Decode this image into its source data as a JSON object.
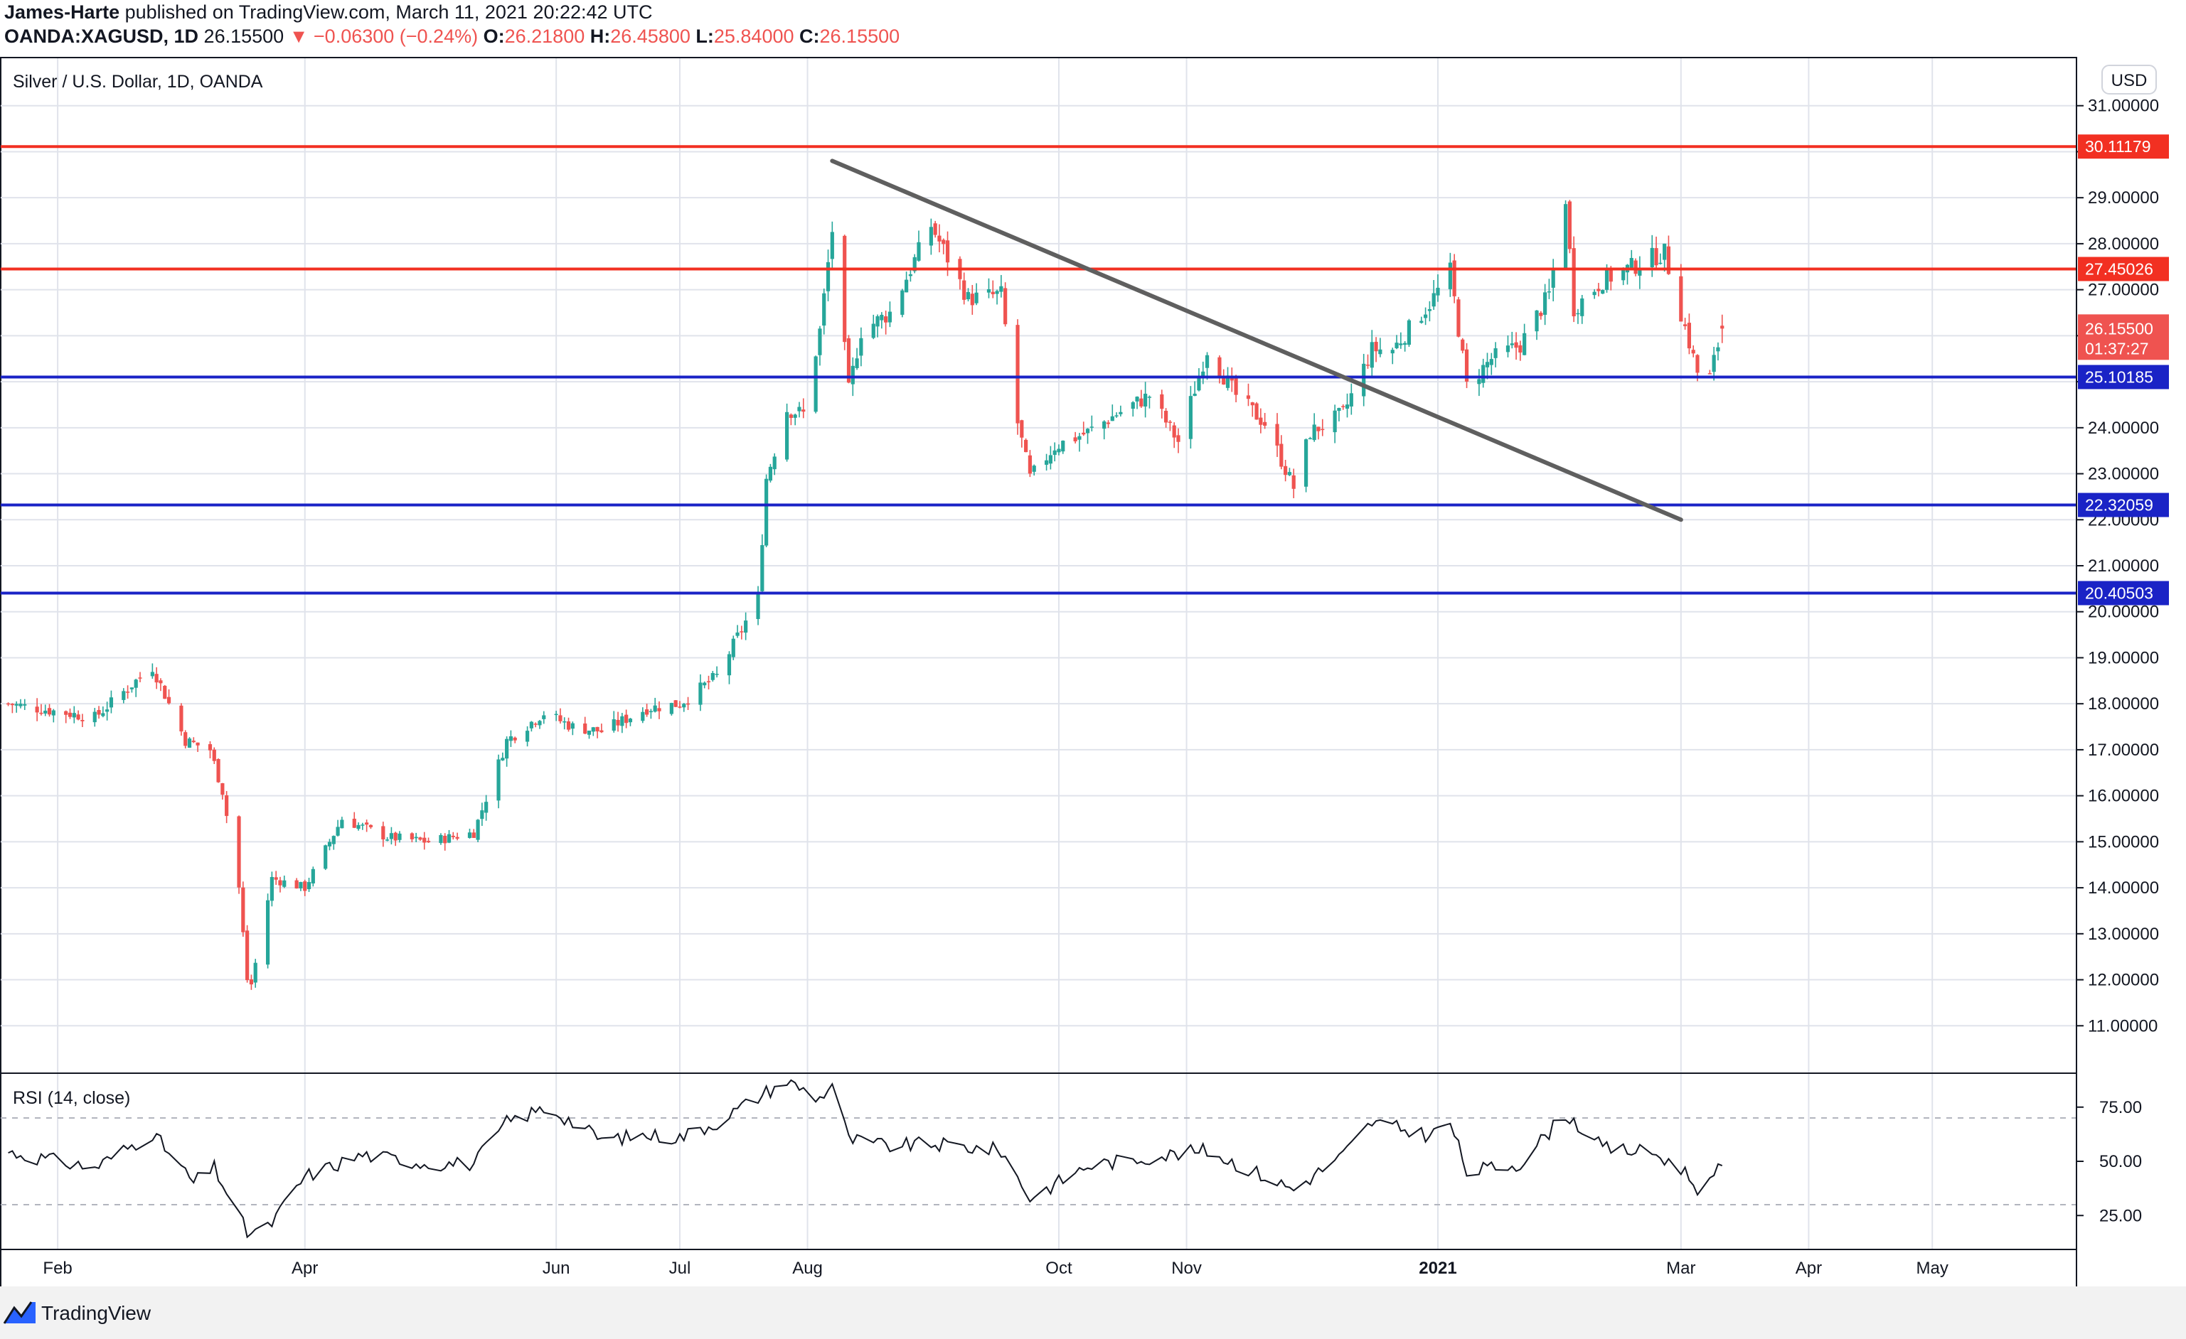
{
  "header": {
    "author": "James-Harte",
    "published_text": " published on TradingView.com, March 11, 2021 20:22:42 UTC",
    "symbol": "OANDA:XAGUSD, 1D",
    "last": "26.15500",
    "change": "▼ −0.06300 (−0.24%)",
    "open_label": "O:",
    "open": "26.21800",
    "high_label": "H:",
    "high": "26.45800",
    "low_label": "L:",
    "low": "25.84000",
    "close_label": "C:",
    "close": "26.15500"
  },
  "colors": {
    "up": "#26a69a",
    "down": "#ef5350",
    "resistance": "#f23022",
    "support": "#1a23c6",
    "trendline": "#5f5f5f",
    "rsi": "#131722",
    "grid": "#e0e3eb"
  },
  "footer": {
    "brand": "TradingView",
    "logo_icon": "tradingview-logo-icon"
  },
  "chart_data": [
    {
      "type": "candlestick",
      "title": "Silver / U.S. Dollar, 1D, OANDA",
      "currency": "USD",
      "ylim": [
        10,
        32
      ],
      "y_ticks": [
        "11.00000",
        "12.00000",
        "13.00000",
        "14.00000",
        "15.00000",
        "16.00000",
        "17.00000",
        "18.00000",
        "19.00000",
        "20.00000",
        "21.00000",
        "22.00000",
        "23.00000",
        "24.00000",
        "25.00000",
        "26.00000",
        "27.00000",
        "28.00000",
        "29.00000",
        "30.00000",
        "31.00000"
      ],
      "y_tick_values": [
        11,
        12,
        13,
        14,
        15,
        16,
        17,
        18,
        19,
        20,
        21,
        22,
        23,
        24,
        25,
        26,
        27,
        28,
        29,
        30,
        31
      ],
      "x_ticks": [
        {
          "label": "Feb",
          "date": "2020-02-01"
        },
        {
          "label": "Apr",
          "date": "2020-04-01"
        },
        {
          "label": "Jun",
          "date": "2020-06-01"
        },
        {
          "label": "Jul",
          "date": "2020-07-01"
        },
        {
          "label": "Aug",
          "date": "2020-08-01"
        },
        {
          "label": "Oct",
          "date": "2020-10-01"
        },
        {
          "label": "Nov",
          "date": "2020-11-01"
        },
        {
          "label": "2021",
          "date": "2021-01-01"
        },
        {
          "label": "Mar",
          "date": "2021-03-01"
        },
        {
          "label": "Apr",
          "date": "2021-04-01"
        },
        {
          "label": "May",
          "date": "2021-05-01"
        }
      ],
      "x_range": [
        "2020-01-18",
        "2021-06-05"
      ],
      "key_points": [
        {
          "date": "2020-01-20",
          "close": 18.0
        },
        {
          "date": "2020-02-10",
          "close": 17.7
        },
        {
          "date": "2020-02-20",
          "close": 18.5
        },
        {
          "date": "2020-02-24",
          "close": 18.8
        },
        {
          "date": "2020-03-03",
          "close": 17.2
        },
        {
          "date": "2020-03-09",
          "close": 17.0
        },
        {
          "date": "2020-03-12",
          "close": 16.1
        },
        {
          "date": "2020-03-16",
          "close": 14.0
        },
        {
          "date": "2020-03-18",
          "close": 12.0
        },
        {
          "date": "2020-03-19",
          "close": 11.9
        },
        {
          "date": "2020-03-24",
          "close": 14.2
        },
        {
          "date": "2020-04-01",
          "close": 14.0
        },
        {
          "date": "2020-04-10",
          "close": 15.5
        },
        {
          "date": "2020-04-21",
          "close": 15.1
        },
        {
          "date": "2020-05-01",
          "close": 15.0
        },
        {
          "date": "2020-05-12",
          "close": 15.2
        },
        {
          "date": "2020-05-20",
          "close": 17.2
        },
        {
          "date": "2020-05-29",
          "close": 17.8
        },
        {
          "date": "2020-06-05",
          "close": 17.5
        },
        {
          "date": "2020-06-12",
          "close": 17.4
        },
        {
          "date": "2020-06-23",
          "close": 17.9
        },
        {
          "date": "2020-07-01",
          "close": 18.0
        },
        {
          "date": "2020-07-10",
          "close": 18.6
        },
        {
          "date": "2020-07-20",
          "close": 20.3
        },
        {
          "date": "2020-07-22",
          "close": 22.9
        },
        {
          "date": "2020-07-27",
          "close": 24.4
        },
        {
          "date": "2020-07-31",
          "close": 24.3
        },
        {
          "date": "2020-08-04",
          "close": 26.1
        },
        {
          "date": "2020-08-07",
          "close": 28.3
        },
        {
          "date": "2020-08-11",
          "close": 24.8
        },
        {
          "date": "2020-08-14",
          "close": 26.1
        },
        {
          "date": "2020-08-21",
          "close": 26.5
        },
        {
          "date": "2020-08-31",
          "close": 28.4
        },
        {
          "date": "2020-09-09",
          "close": 26.8
        },
        {
          "date": "2020-09-17",
          "close": 26.9
        },
        {
          "date": "2020-09-21",
          "close": 24.1
        },
        {
          "date": "2020-09-24",
          "close": 22.9
        },
        {
          "date": "2020-09-30",
          "close": 23.6
        },
        {
          "date": "2020-10-08",
          "close": 23.9
        },
        {
          "date": "2020-10-15",
          "close": 24.3
        },
        {
          "date": "2020-10-23",
          "close": 24.7
        },
        {
          "date": "2020-10-30",
          "close": 23.7
        },
        {
          "date": "2020-11-06",
          "close": 25.7
        },
        {
          "date": "2020-11-13",
          "close": 24.7
        },
        {
          "date": "2020-11-20",
          "close": 24.1
        },
        {
          "date": "2020-11-27",
          "close": 22.7
        },
        {
          "date": "2020-12-01",
          "close": 23.9
        },
        {
          "date": "2020-12-09",
          "close": 24.3
        },
        {
          "date": "2020-12-16",
          "close": 25.7
        },
        {
          "date": "2020-12-21",
          "close": 25.7
        },
        {
          "date": "2020-12-30",
          "close": 26.7
        },
        {
          "date": "2021-01-04",
          "close": 27.4
        },
        {
          "date": "2021-01-08",
          "close": 24.9
        },
        {
          "date": "2021-01-14",
          "close": 25.5
        },
        {
          "date": "2021-01-21",
          "close": 25.8
        },
        {
          "date": "2021-01-28",
          "close": 26.9
        },
        {
          "date": "2021-02-01",
          "close": 29.0
        },
        {
          "date": "2021-02-03",
          "close": 26.6
        },
        {
          "date": "2021-02-10",
          "close": 27.2
        },
        {
          "date": "2021-02-22",
          "close": 27.7
        },
        {
          "date": "2021-02-25",
          "close": 27.8
        },
        {
          "date": "2021-03-01",
          "close": 26.5
        },
        {
          "date": "2021-03-05",
          "close": 25.2
        },
        {
          "date": "2021-03-08",
          "close": 25.1
        },
        {
          "date": "2021-03-11",
          "close": 26.155
        }
      ],
      "horizontal_levels": [
        {
          "value": 30.11179,
          "label": "30.11179",
          "kind": "resistance"
        },
        {
          "value": 27.45026,
          "label": "27.45026",
          "kind": "resistance"
        },
        {
          "value": 25.10185,
          "label": "25.10185",
          "kind": "support"
        },
        {
          "value": 22.32059,
          "label": "22.32059",
          "kind": "support"
        },
        {
          "value": 20.40503,
          "label": "20.40503",
          "kind": "support"
        }
      ],
      "trendline": [
        {
          "date": "2020-08-07",
          "value": 29.8
        },
        {
          "date": "2021-03-01",
          "value": 22.0
        }
      ],
      "last_price": {
        "label": "26.15500",
        "countdown": "01:37:27"
      }
    },
    {
      "type": "line",
      "title": "RSI (14, close)",
      "ylim": [
        10,
        90
      ],
      "y_ticks": [
        "25.00",
        "50.00",
        "75.00"
      ],
      "y_tick_values": [
        25,
        50,
        75
      ],
      "bands": [
        70,
        30
      ],
      "key_points": [
        {
          "date": "2020-01-18",
          "value": 55
        },
        {
          "date": "2020-02-01",
          "value": 50
        },
        {
          "date": "2020-02-10",
          "value": 47
        },
        {
          "date": "2020-02-24",
          "value": 63
        },
        {
          "date": "2020-03-05",
          "value": 40
        },
        {
          "date": "2020-03-10",
          "value": 47
        },
        {
          "date": "2020-03-18",
          "value": 17
        },
        {
          "date": "2020-03-23",
          "value": 19
        },
        {
          "date": "2020-04-01",
          "value": 43
        },
        {
          "date": "2020-04-15",
          "value": 53
        },
        {
          "date": "2020-05-01",
          "value": 49
        },
        {
          "date": "2020-05-12",
          "value": 49
        },
        {
          "date": "2020-05-20",
          "value": 68
        },
        {
          "date": "2020-05-30",
          "value": 75
        },
        {
          "date": "2020-06-12",
          "value": 60
        },
        {
          "date": "2020-06-23",
          "value": 62
        },
        {
          "date": "2020-07-01",
          "value": 61
        },
        {
          "date": "2020-07-10",
          "value": 68
        },
        {
          "date": "2020-07-22",
          "value": 82
        },
        {
          "date": "2020-07-27",
          "value": 87
        },
        {
          "date": "2020-08-04",
          "value": 79
        },
        {
          "date": "2020-08-07",
          "value": 86
        },
        {
          "date": "2020-08-11",
          "value": 60
        },
        {
          "date": "2020-08-21",
          "value": 57
        },
        {
          "date": "2020-08-31",
          "value": 58
        },
        {
          "date": "2020-09-17",
          "value": 55
        },
        {
          "date": "2020-09-24",
          "value": 33
        },
        {
          "date": "2020-10-08",
          "value": 48
        },
        {
          "date": "2020-10-23",
          "value": 52
        },
        {
          "date": "2020-11-06",
          "value": 55
        },
        {
          "date": "2020-11-27",
          "value": 37
        },
        {
          "date": "2020-12-09",
          "value": 53
        },
        {
          "date": "2020-12-16",
          "value": 68
        },
        {
          "date": "2020-12-30",
          "value": 62
        },
        {
          "date": "2021-01-04",
          "value": 68
        },
        {
          "date": "2021-01-08",
          "value": 45
        },
        {
          "date": "2021-01-21",
          "value": 49
        },
        {
          "date": "2021-02-01",
          "value": 72
        },
        {
          "date": "2021-02-10",
          "value": 56
        },
        {
          "date": "2021-02-22",
          "value": 54
        },
        {
          "date": "2021-03-01",
          "value": 47
        },
        {
          "date": "2021-03-05",
          "value": 38
        },
        {
          "date": "2021-03-08",
          "value": 40
        },
        {
          "date": "2021-03-11",
          "value": 48
        }
      ]
    }
  ]
}
